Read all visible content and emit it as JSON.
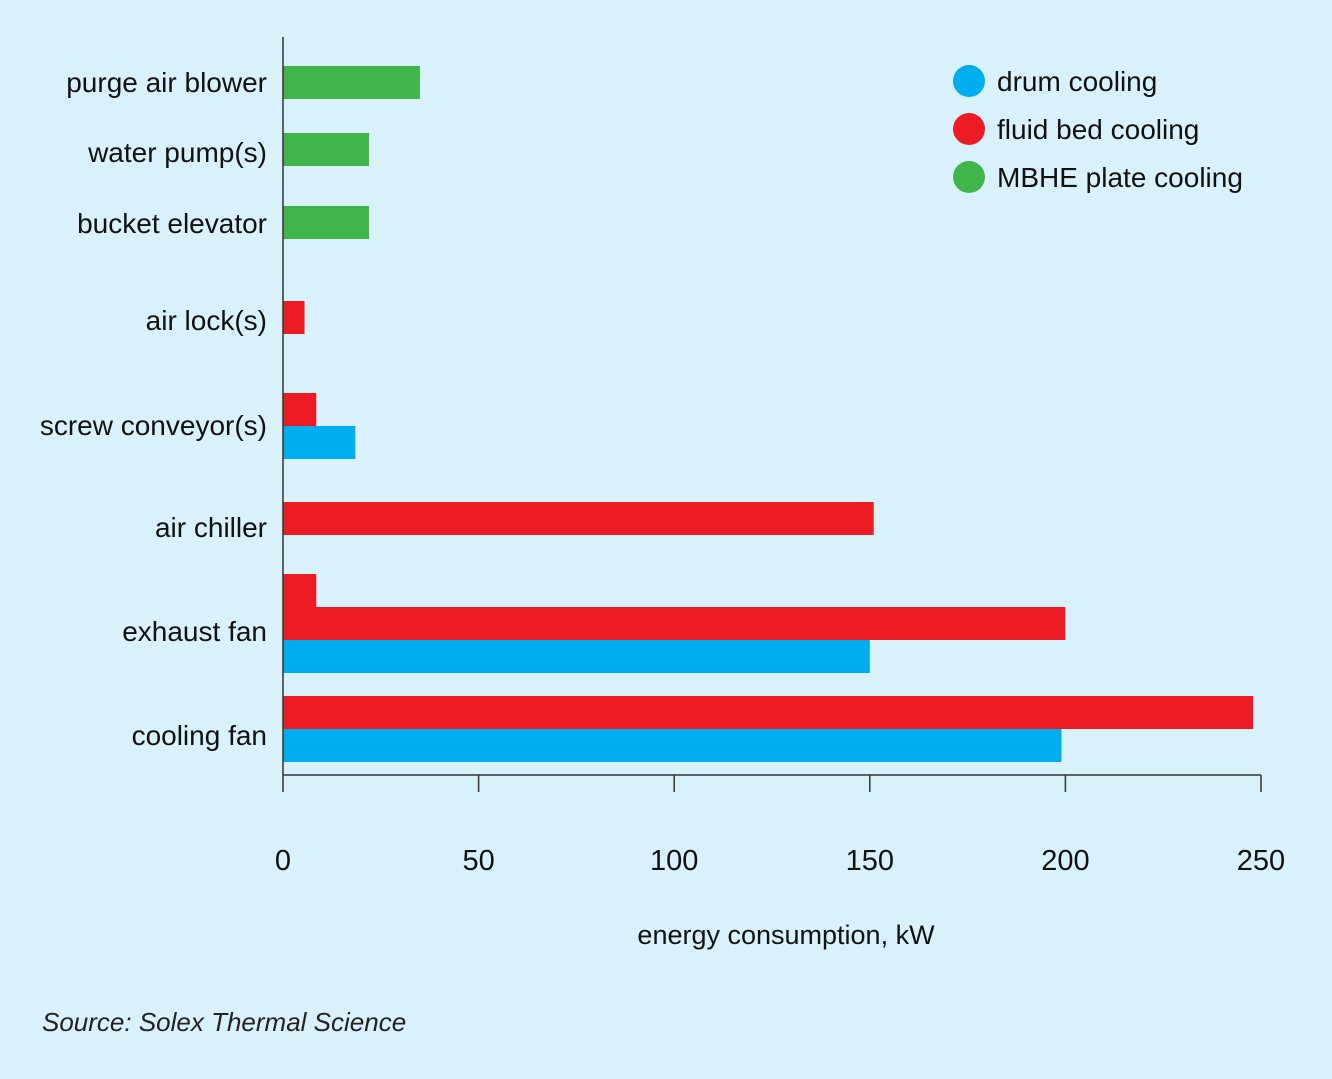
{
  "chart_data": {
    "type": "bar",
    "orientation": "horizontal",
    "categories": [
      "purge air blower",
      "water pump(s)",
      "bucket elevator",
      "air lock(s)",
      "screw conveyor(s)",
      "air chiller",
      "exhaust fan",
      "cooling fan"
    ],
    "bars": [
      {
        "category": "purge air blower",
        "series": "MBHE plate cooling",
        "value": 35
      },
      {
        "category": "water pump(s)",
        "series": "MBHE plate cooling",
        "value": 22
      },
      {
        "category": "bucket elevator",
        "series": "MBHE plate cooling",
        "value": 22
      },
      {
        "category": "air lock(s)",
        "series": "fluid bed cooling",
        "value": 5.5
      },
      {
        "category": "screw conveyor(s)",
        "series": "fluid bed cooling",
        "value": 8.5
      },
      {
        "category": "screw conveyor(s)",
        "series": "drum cooling",
        "value": 18.5
      },
      {
        "category": "air chiller",
        "series": "fluid bed cooling",
        "value": 151
      },
      {
        "category": "exhaust fan",
        "series": "fluid bed cooling",
        "value": 8.5
      },
      {
        "category": "exhaust fan",
        "series": "fluid bed cooling",
        "value": 200
      },
      {
        "category": "exhaust fan",
        "series": "drum cooling",
        "value": 150
      },
      {
        "category": "cooling fan",
        "series": "fluid bed cooling",
        "value": 248
      },
      {
        "category": "cooling fan",
        "series": "drum cooling",
        "value": 199
      }
    ],
    "series": [
      {
        "name": "drum cooling",
        "color": "#00aeef"
      },
      {
        "name": "fluid bed cooling",
        "color": "#ed1c24"
      },
      {
        "name": "MBHE plate cooling",
        "color": "#3fb54a"
      }
    ],
    "xlabel": "energy consumption, kW",
    "ylabel": "",
    "xlim": [
      0,
      250
    ],
    "xticks": [
      "0",
      "50",
      "100",
      "150",
      "200",
      "250"
    ],
    "grid": false,
    "legend_position": "top-right"
  },
  "source": "Source: Solex Thermal Science",
  "colors": {
    "background": "#d9f1fa",
    "axis": "#333333"
  }
}
